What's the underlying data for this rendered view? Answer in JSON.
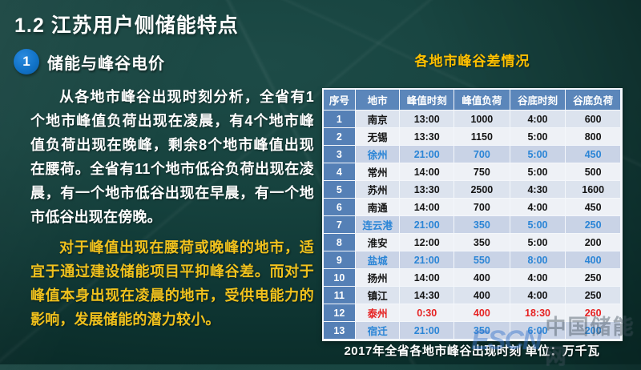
{
  "slide": {
    "title": "1.2 江苏用户侧储能特点",
    "section": {
      "number": "1",
      "label": "储能与峰谷电价"
    },
    "paragraph_white": "从各地市峰谷出现时刻分析，全省有1个地市峰值负荷出现在凌晨，有4个地市峰值负荷出现在晚峰，剩余8个地市峰值出现在腰荷。全省有11个地市低谷负荷出现在凌晨，有一个地市低谷出现在早晨，有一个地市低谷出现在傍晚。",
    "paragraph_gold": "对于峰值出现在腰荷或晚峰的地市，适宜于通过建设储能项目平抑峰谷差。而对于峰值本身出现在凌晨的地市，受供电能力的影响，发展储能的潜力较小。"
  },
  "table": {
    "title": "各地市峰谷差情况",
    "caption": "2017年全省各地市峰谷出现时刻 单位：万千瓦",
    "headers": [
      "序号",
      "地市",
      "峰值时刻",
      "峰值负荷",
      "谷底时刻",
      "谷底负荷"
    ],
    "rows": [
      {
        "no": "1",
        "city": "南京",
        "peak_time": "13:00",
        "peak_load": "1000",
        "valley_time": "4:00",
        "valley_load": "600",
        "style": "normal"
      },
      {
        "no": "2",
        "city": "无锡",
        "peak_time": "13:30",
        "peak_load": "1150",
        "valley_time": "5:00",
        "valley_load": "800",
        "style": "normal"
      },
      {
        "no": "3",
        "city": "徐州",
        "peak_time": "21:00",
        "peak_load": "700",
        "valley_time": "5:00",
        "valley_load": "450",
        "style": "highlight"
      },
      {
        "no": "4",
        "city": "常州",
        "peak_time": "14:00",
        "peak_load": "750",
        "valley_time": "5:00",
        "valley_load": "500",
        "style": "normal"
      },
      {
        "no": "5",
        "city": "苏州",
        "peak_time": "13:30",
        "peak_load": "2500",
        "valley_time": "4:30",
        "valley_load": "1600",
        "style": "normal"
      },
      {
        "no": "6",
        "city": "南通",
        "peak_time": "14:00",
        "peak_load": "700",
        "valley_time": "4:00",
        "valley_load": "450",
        "style": "normal"
      },
      {
        "no": "7",
        "city": "连云港",
        "peak_time": "21:00",
        "peak_load": "350",
        "valley_time": "5:00",
        "valley_load": "250",
        "style": "highlight"
      },
      {
        "no": "8",
        "city": "淮安",
        "peak_time": "12:00",
        "peak_load": "350",
        "valley_time": "5:00",
        "valley_load": "200",
        "style": "normal"
      },
      {
        "no": "9",
        "city": "盐城",
        "peak_time": "21:00",
        "peak_load": "550",
        "valley_time": "8:00",
        "valley_load": "400",
        "style": "highlight"
      },
      {
        "no": "10",
        "city": "扬州",
        "peak_time": "14:00",
        "peak_load": "400",
        "valley_time": "4:00",
        "valley_load": "250",
        "style": "normal"
      },
      {
        "no": "11",
        "city": "镇江",
        "peak_time": "14:30",
        "peak_load": "400",
        "valley_time": "4:00",
        "valley_load": "250",
        "style": "normal"
      },
      {
        "no": "12",
        "city": "泰州",
        "peak_time": "0:30",
        "peak_load": "400",
        "valley_time": "18:30",
        "valley_load": "260",
        "style": "red"
      },
      {
        "no": "13",
        "city": "宿迁",
        "peak_time": "21:00",
        "peak_load": "350",
        "valley_time": "6:00",
        "valley_load": "200",
        "style": "highlight"
      }
    ]
  },
  "watermark": {
    "logo": "ESCN",
    "name": "中国储能网"
  },
  "colors": {
    "background_teal": "#143e3b",
    "accent_blue_circle": "#1173c8",
    "gold_text": "#f0c11d",
    "table_title_yellow": "#ffc000",
    "table_header_blue": "#5b86ba",
    "row_band_odd": "#dce3ee",
    "row_band_even": "#eef1f6",
    "row_highlight": "#c9d3e6",
    "highlight_text_blue": "#2b85d6",
    "alert_text_red": "#e62222"
  }
}
